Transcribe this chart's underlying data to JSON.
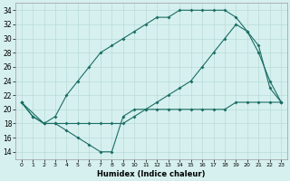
{
  "xlabel": "Humidex (Indice chaleur)",
  "ylabel": "",
  "bg_color": "#d6f0ef",
  "grid_color": "#b8dbd8",
  "line_color": "#1a6e64",
  "xlim": [
    -0.5,
    23.5
  ],
  "ylim": [
    13,
    35
  ],
  "xticks": [
    0,
    1,
    2,
    3,
    4,
    5,
    6,
    7,
    8,
    9,
    10,
    11,
    12,
    13,
    14,
    15,
    16,
    17,
    18,
    19,
    20,
    21,
    22,
    23
  ],
  "yticks": [
    14,
    16,
    18,
    20,
    22,
    24,
    26,
    28,
    30,
    32,
    34
  ],
  "line1_x": [
    0,
    1,
    2,
    3,
    4,
    5,
    6,
    7,
    8,
    9,
    10,
    11,
    12,
    13,
    14,
    15,
    16,
    17,
    18,
    19,
    20,
    21,
    22,
    23
  ],
  "line1_y": [
    21,
    19,
    18,
    18,
    17,
    16,
    15,
    14,
    14,
    19,
    20,
    20,
    20,
    20,
    20,
    20,
    20,
    20,
    20,
    21,
    21,
    21,
    21,
    21
  ],
  "line2_x": [
    0,
    1,
    2,
    3,
    4,
    5,
    6,
    7,
    8,
    9,
    10,
    11,
    12,
    13,
    14,
    15,
    16,
    17,
    18,
    19,
    20,
    21,
    22,
    23
  ],
  "line2_y": [
    21,
    19,
    18,
    19,
    22,
    24,
    26,
    28,
    29,
    30,
    31,
    32,
    33,
    33,
    34,
    34,
    34,
    34,
    34,
    33,
    31,
    28,
    24,
    21
  ],
  "line3_x": [
    0,
    2,
    3,
    4,
    5,
    6,
    7,
    8,
    9,
    10,
    11,
    12,
    13,
    14,
    15,
    16,
    17,
    18,
    19,
    20,
    21,
    22,
    23
  ],
  "line3_y": [
    21,
    18,
    18,
    18,
    18,
    18,
    18,
    18,
    18,
    19,
    20,
    21,
    22,
    23,
    24,
    26,
    28,
    30,
    32,
    31,
    29,
    23,
    21
  ]
}
